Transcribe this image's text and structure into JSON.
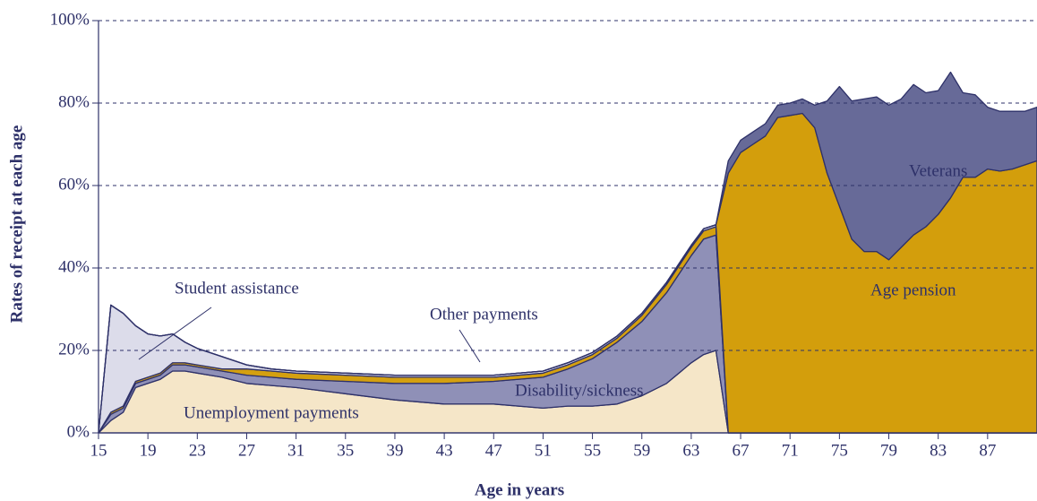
{
  "chart_data": {
    "type": "stacked_area",
    "x_label": "Age in years",
    "y_label": "Rates of receipt at each age",
    "x": [
      15,
      16,
      17,
      18,
      19,
      20,
      21,
      22,
      23,
      25,
      27,
      29,
      31,
      35,
      39,
      43,
      47,
      51,
      53,
      55,
      57,
      59,
      61,
      63,
      64,
      65,
      66,
      67,
      68,
      69,
      70,
      71,
      72,
      73,
      74,
      75,
      76,
      77,
      78,
      79,
      80,
      81,
      82,
      83,
      84,
      85,
      86,
      87,
      88,
      89,
      90,
      91
    ],
    "series": [
      {
        "name": "Unemployment payments",
        "color": "#f5e6c8",
        "values": [
          0,
          3,
          5,
          11,
          12,
          13,
          15,
          15,
          14.5,
          13.5,
          12,
          11.5,
          11,
          9.5,
          8,
          7,
          7,
          6,
          6.5,
          6.5,
          7,
          9,
          12,
          17,
          19,
          20,
          0,
          0,
          0,
          0,
          0,
          0,
          0,
          0,
          0,
          0,
          0,
          0,
          0,
          0,
          0,
          0,
          0,
          0,
          0,
          0,
          0,
          0,
          0,
          0,
          0,
          0
        ]
      },
      {
        "name": "Disability/sickness",
        "color": "#8f90b7",
        "values": [
          0,
          1.5,
          1,
          1,
          1,
          1,
          1.5,
          1.5,
          1.5,
          1.5,
          2,
          2,
          2,
          3,
          4,
          5,
          5.5,
          7.5,
          9,
          11.5,
          15,
          18,
          22,
          26,
          28,
          28,
          0,
          0,
          0,
          0,
          0,
          0,
          0,
          0,
          0,
          0,
          0,
          0,
          0,
          0,
          0,
          0,
          0,
          0,
          0,
          0,
          0,
          0,
          0,
          0,
          0,
          0
        ]
      },
      {
        "name": "Other payments",
        "color": "#d4a010",
        "values": [
          0,
          0.5,
          0.5,
          0.5,
          0.5,
          0.5,
          0.5,
          0.5,
          0.5,
          0.5,
          1.5,
          1.5,
          1.5,
          1.5,
          1.5,
          1.5,
          1,
          1,
          1,
          1,
          1,
          1.5,
          2,
          2,
          2,
          2,
          0,
          0,
          0,
          0,
          0,
          0,
          0,
          0,
          0,
          0,
          0,
          0,
          0,
          0,
          0,
          0,
          0,
          0,
          0,
          0,
          0,
          0,
          0,
          0,
          0,
          0
        ]
      },
      {
        "name": "Student assistance",
        "color": "#dcdcea",
        "values": [
          0,
          26,
          22.5,
          13.5,
          10.5,
          9,
          7,
          5,
          4,
          3,
          1,
          0.5,
          0.5,
          0.5,
          0.5,
          0.5,
          0.5,
          0.5,
          0.5,
          0.5,
          0.5,
          0.5,
          0.5,
          0.5,
          0.5,
          0.5,
          0,
          0,
          0,
          0,
          0,
          0,
          0,
          0,
          0,
          0,
          0,
          0,
          0,
          0,
          0,
          0,
          0,
          0,
          0,
          0,
          0,
          0,
          0,
          0,
          0,
          0
        ]
      },
      {
        "name": "Age pension",
        "color": "#d39e0c",
        "values": [
          0,
          0,
          0,
          0,
          0,
          0,
          0,
          0,
          0,
          0,
          0,
          0,
          0,
          0,
          0,
          0,
          0,
          0,
          0,
          0,
          0,
          0,
          0,
          0,
          0,
          0,
          63,
          68,
          70,
          72,
          76.5,
          77,
          77.5,
          74,
          63,
          55,
          47,
          44,
          44,
          42,
          45,
          48,
          50,
          53,
          57,
          62,
          62,
          64,
          63.5,
          64,
          65,
          66
        ]
      },
      {
        "name": "Veterans",
        "color": "#676a98",
        "values": [
          0,
          0,
          0,
          0,
          0,
          0,
          0,
          0,
          0,
          0,
          0,
          0,
          0,
          0,
          0,
          0,
          0,
          0,
          0,
          0,
          0,
          0,
          0,
          0,
          0,
          0,
          3,
          3,
          3,
          3,
          3,
          3,
          3.5,
          5.5,
          17.5,
          29,
          33.5,
          37,
          37.5,
          37.5,
          36,
          36.5,
          32.5,
          30,
          30.5,
          20.5,
          20,
          15,
          14.5,
          14,
          13,
          13
        ]
      }
    ],
    "xlim": [
      15,
      91
    ],
    "xticks": [
      15,
      19,
      23,
      27,
      31,
      35,
      39,
      43,
      47,
      51,
      55,
      59,
      63,
      67,
      71,
      75,
      79,
      83,
      87
    ],
    "ylim": [
      0,
      100
    ],
    "yticks": [
      {
        "value": 0,
        "label": "0%"
      },
      {
        "value": 20,
        "label": "20%"
      },
      {
        "value": 40,
        "label": "40%"
      },
      {
        "value": 60,
        "label": "60%"
      },
      {
        "value": 80,
        "label": "80%"
      },
      {
        "value": 100,
        "label": "100%"
      }
    ],
    "grid": true
  }
}
